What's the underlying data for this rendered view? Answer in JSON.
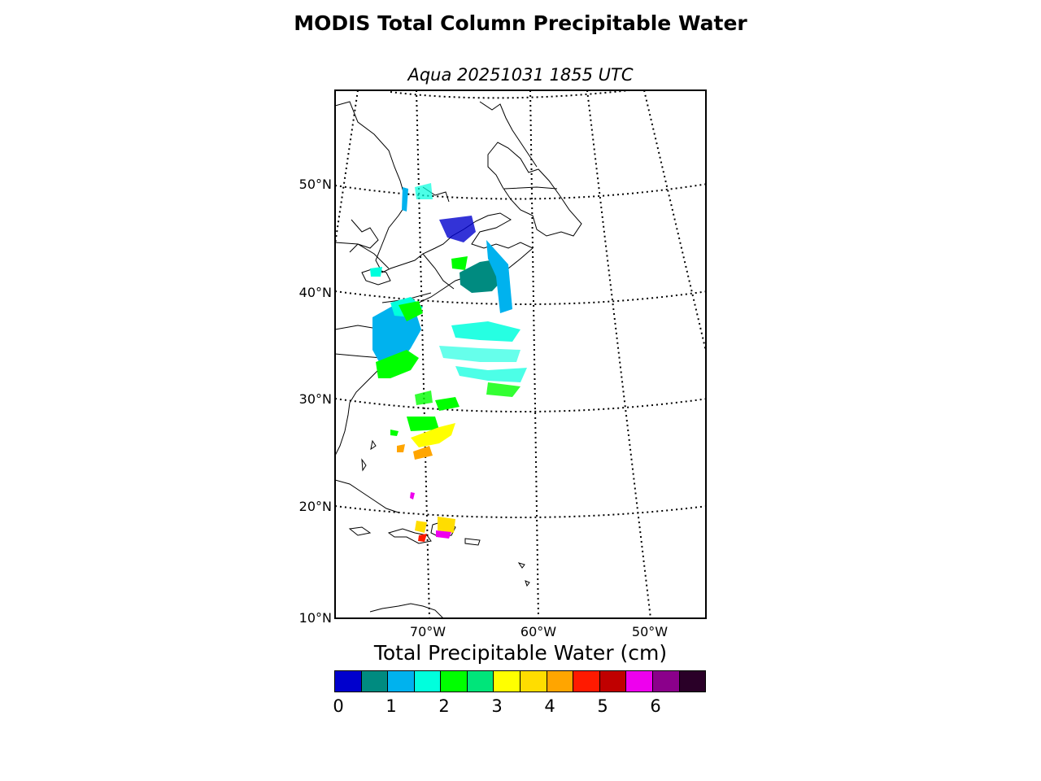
{
  "title": "MODIS Total Column Precipitable Water",
  "subtitle": "Aqua 20251031 1855 UTC",
  "map": {
    "projection": "lambert-conformal",
    "lat_labels": [
      "50°N",
      "40°N",
      "30°N",
      "20°N",
      "10°N"
    ],
    "lon_labels": [
      "70°W",
      "60°W",
      "50°W"
    ],
    "graticule_style": "dotted"
  },
  "colorbar": {
    "title": "Total Precipitable Water (cm)",
    "ticks": [
      "0",
      "1",
      "2",
      "3",
      "4",
      "5",
      "6"
    ],
    "colors": [
      "#0000cd",
      "#008b80",
      "#00b2ee",
      "#00ffdd",
      "#00ff00",
      "#00e57a",
      "#ffff00",
      "#ffdd00",
      "#ffa500",
      "#ff1a00",
      "#c00000",
      "#ee00ee",
      "#8b008b",
      "#2a0028"
    ]
  }
}
